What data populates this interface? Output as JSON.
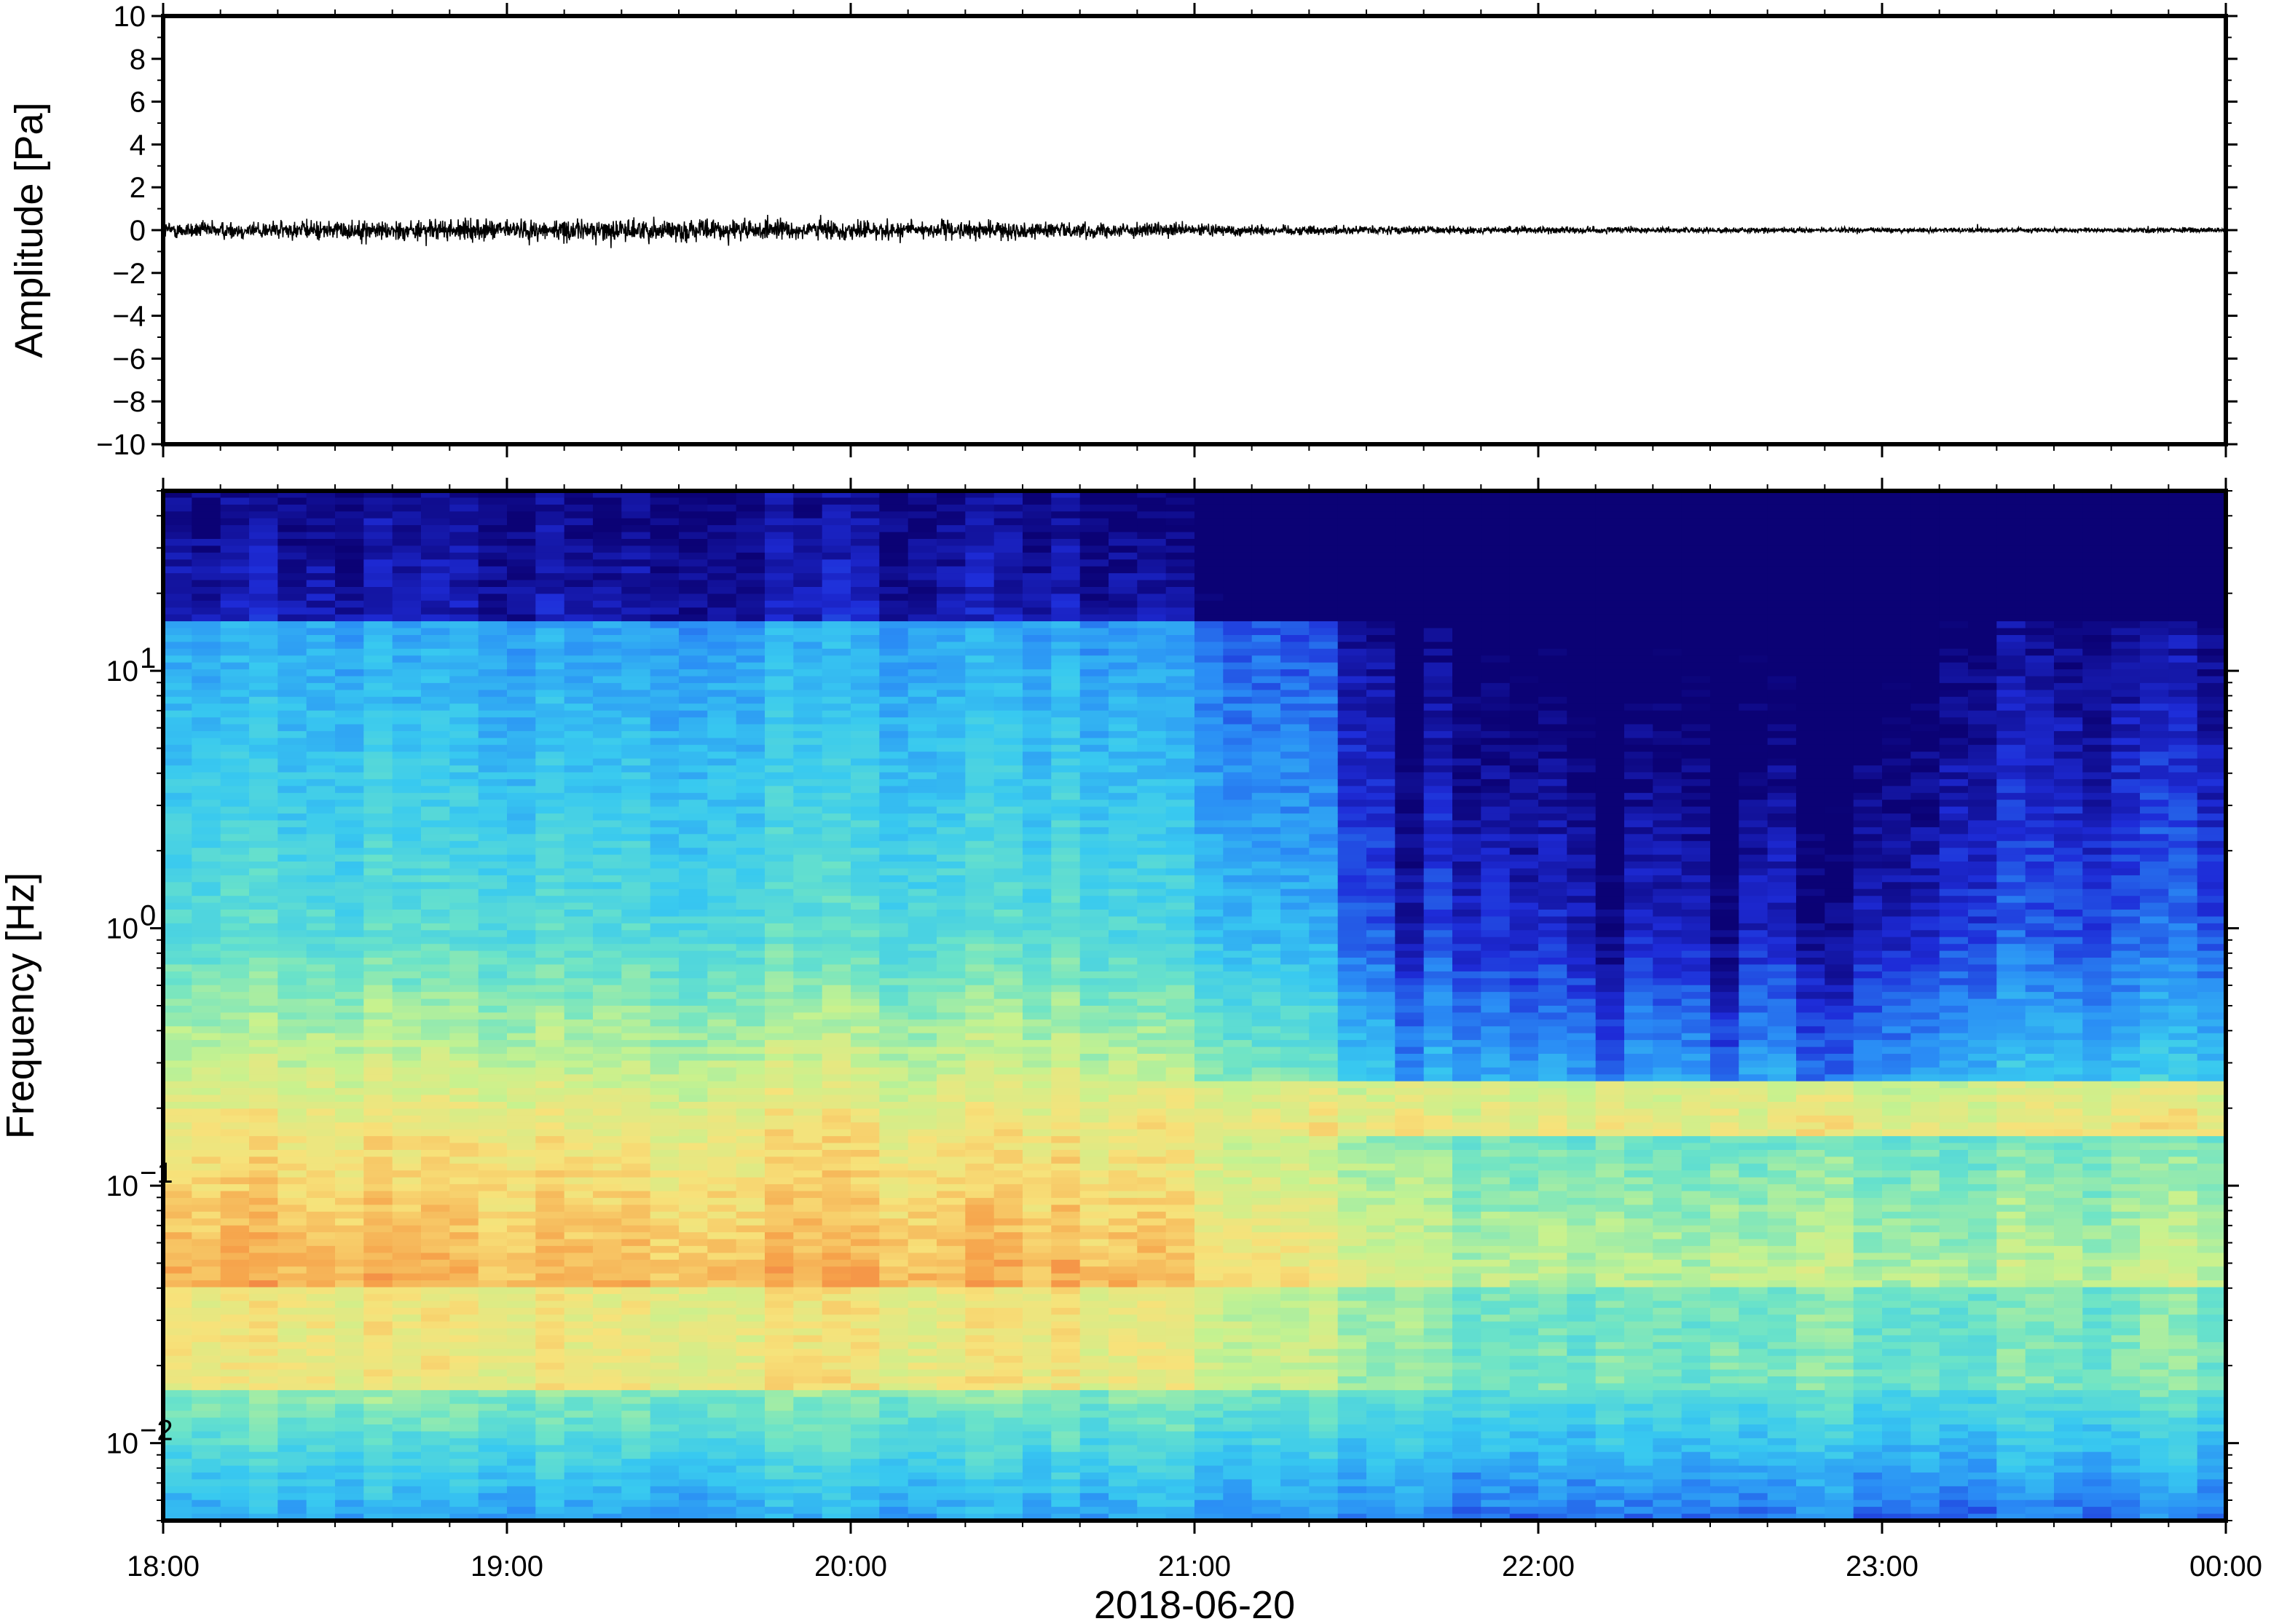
{
  "figure": {
    "date_label": "2018-06-20"
  },
  "chart_data": [
    {
      "type": "line",
      "panel": "waveform",
      "ylabel": "Amplitude [Pa]",
      "xlabel": "",
      "ylim": [
        -10,
        10
      ],
      "yticks": [
        10,
        8,
        6,
        4,
        2,
        0,
        -2,
        -4,
        -6,
        -8,
        -10
      ],
      "ytick_labels": [
        "10",
        "8",
        "6",
        "4",
        "2",
        "0",
        "−2",
        "−4",
        "−6",
        "−8",
        "−10"
      ],
      "x_range": [
        "2018-06-20 18:00",
        "2018-06-21 00:00"
      ],
      "series": [
        {
          "color": "#000000",
          "envelope_hours": [
            0.0,
            0.5,
            1.0,
            1.5,
            2.0,
            2.5,
            3.0,
            3.5,
            4.0,
            4.5,
            5.0,
            5.5,
            6.0
          ],
          "envelope_amplitude_pa": [
            0.6,
            0.7,
            0.75,
            0.8,
            0.7,
            0.6,
            0.45,
            0.3,
            0.25,
            0.2,
            0.18,
            0.18,
            0.2
          ]
        }
      ]
    },
    {
      "type": "heatmap",
      "panel": "spectrogram",
      "ylabel": "Frequency [Hz]",
      "xlabel": "2018-06-20",
      "yscale": "log",
      "ylim": [
        0.005,
        50
      ],
      "ytick_values": [
        10,
        1,
        0.1,
        0.01
      ],
      "ytick_mantissa": [
        "10",
        "10",
        "10",
        "10"
      ],
      "ytick_exponent": [
        "1",
        "0",
        "−1",
        "−2"
      ],
      "xticks": [
        "18:00",
        "19:00",
        "20:00",
        "21:00",
        "22:00",
        "23:00",
        "00:00"
      ],
      "colormap": [
        "#0b0275",
        "#1e2cd8",
        "#2a8cf5",
        "#38c9f0",
        "#6be3c8",
        "#c6f28f",
        "#f7e27a",
        "#f6a24a",
        "#ee5a3c"
      ]
    }
  ]
}
